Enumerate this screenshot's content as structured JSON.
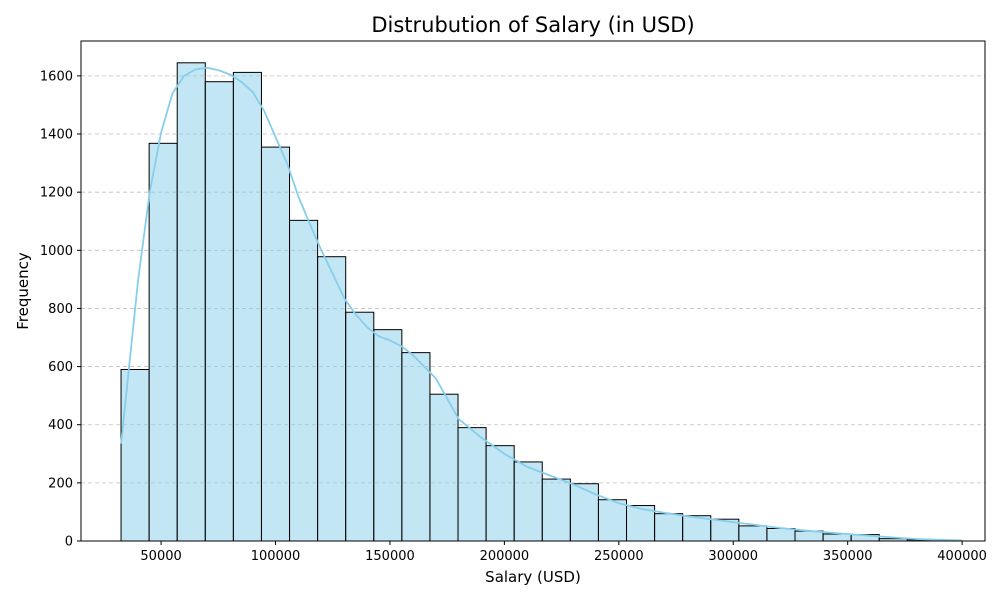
{
  "chart_data": {
    "type": "bar",
    "title": "Distrubution of Salary (in USD)",
    "xlabel": "Salary (USD)",
    "ylabel": "Frequency",
    "xlim": [
      15000,
      410000
    ],
    "ylim": [
      0,
      1720
    ],
    "x_ticks": [
      50000,
      100000,
      150000,
      200000,
      250000,
      300000,
      350000,
      400000
    ],
    "y_ticks": [
      0,
      200,
      400,
      600,
      800,
      1000,
      1200,
      1400,
      1600
    ],
    "grid": "y-dashed",
    "bin_start": 32500,
    "bin_width": 12270,
    "counts": [
      590,
      1368,
      1645,
      1580,
      1612,
      1355,
      1103,
      978,
      787,
      727,
      648,
      505,
      390,
      328,
      272,
      213,
      197,
      142,
      122,
      94,
      87,
      75,
      52,
      43,
      34,
      24,
      22,
      8,
      4
    ],
    "bar_color": "#87CEEB",
    "bar_edge_color": "#000000",
    "kde_color": "#87CEEB",
    "kde_x": [
      32500,
      36000,
      40000,
      45000,
      50000,
      55000,
      60000,
      65000,
      70000,
      75000,
      80000,
      85000,
      90000,
      95000,
      100000,
      105000,
      110000,
      115000,
      120000,
      125000,
      130000,
      135000,
      140000,
      145000,
      150000,
      155000,
      160000,
      170000,
      180000,
      190000,
      200000,
      210000,
      220000,
      230000,
      240000,
      250000,
      260000,
      270000,
      280000,
      290000,
      300000,
      310000,
      320000,
      330000,
      340000,
      350000,
      360000,
      370000,
      380000,
      390000,
      400000
    ],
    "kde_y": [
      335,
      600,
      900,
      1200,
      1405,
      1540,
      1600,
      1622,
      1628,
      1620,
      1605,
      1580,
      1545,
      1480,
      1390,
      1300,
      1185,
      1090,
      1000,
      920,
      835,
      780,
      735,
      705,
      690,
      670,
      640,
      560,
      420,
      355,
      300,
      255,
      225,
      195,
      160,
      130,
      110,
      97,
      85,
      75,
      65,
      55,
      45,
      37,
      30,
      24,
      18,
      12,
      7,
      4,
      2
    ]
  }
}
